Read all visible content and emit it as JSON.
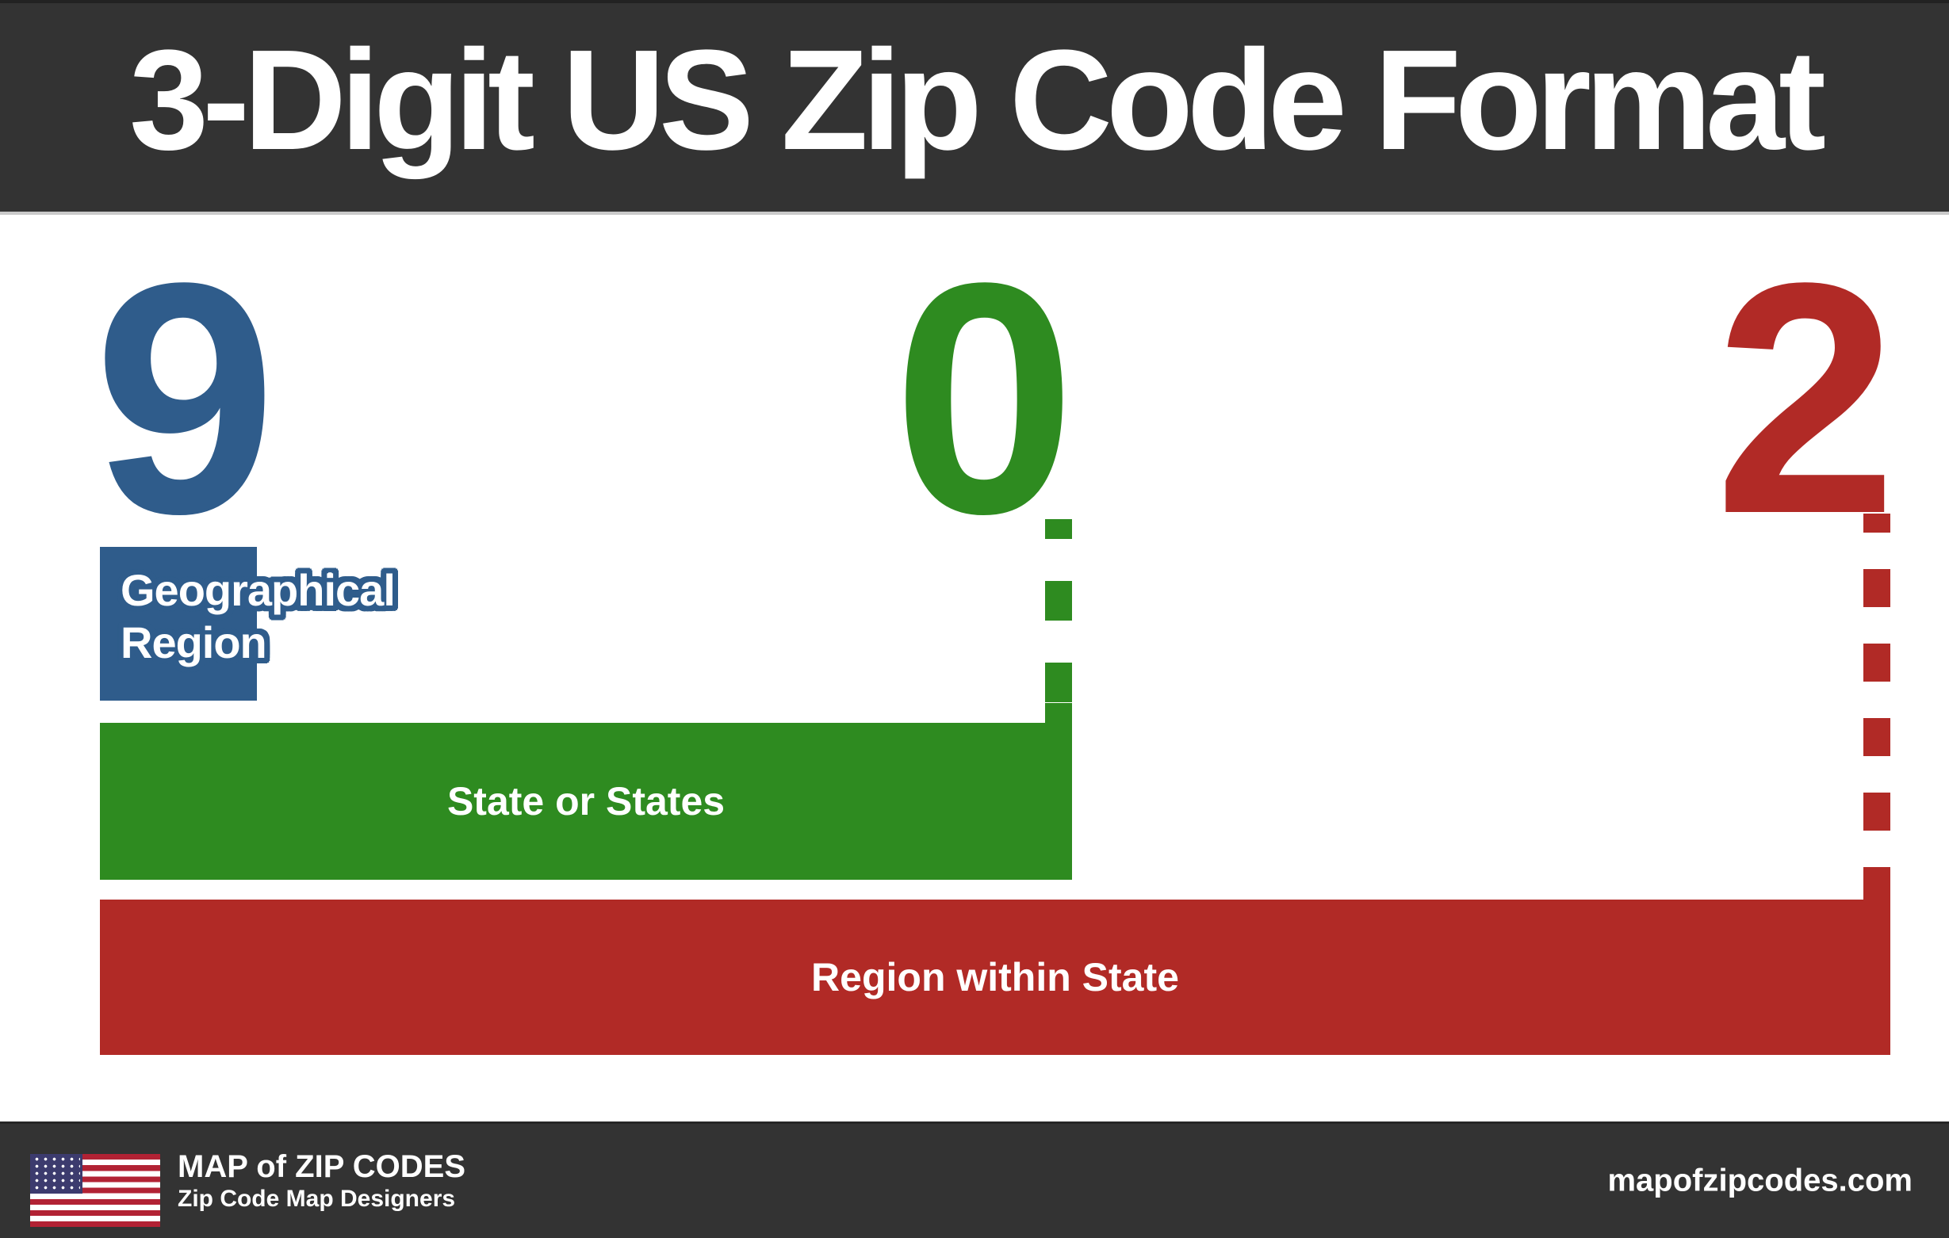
{
  "header": {
    "title": "3-Digit US Zip Code Format"
  },
  "digits": {
    "first": "9",
    "second": "0",
    "third": "2"
  },
  "labels": {
    "geographical": "Geographical Region",
    "state": "State or States",
    "region": "Region within State"
  },
  "colors": {
    "digit_first_blue": "#2f5c8b",
    "digit_second_green": "#2e8b20",
    "digit_third_red": "#b12a26",
    "banner_dark": "#333333",
    "text_white": "#ffffff",
    "flag_red": "#b22234",
    "flag_blue": "#3c3b6e"
  },
  "footer": {
    "brand": "MAP of ZIP CODES",
    "tagline": "Zip Code Map Designers",
    "website": "mapofzipcodes.com",
    "flag_icon": "us-flag-icon"
  }
}
